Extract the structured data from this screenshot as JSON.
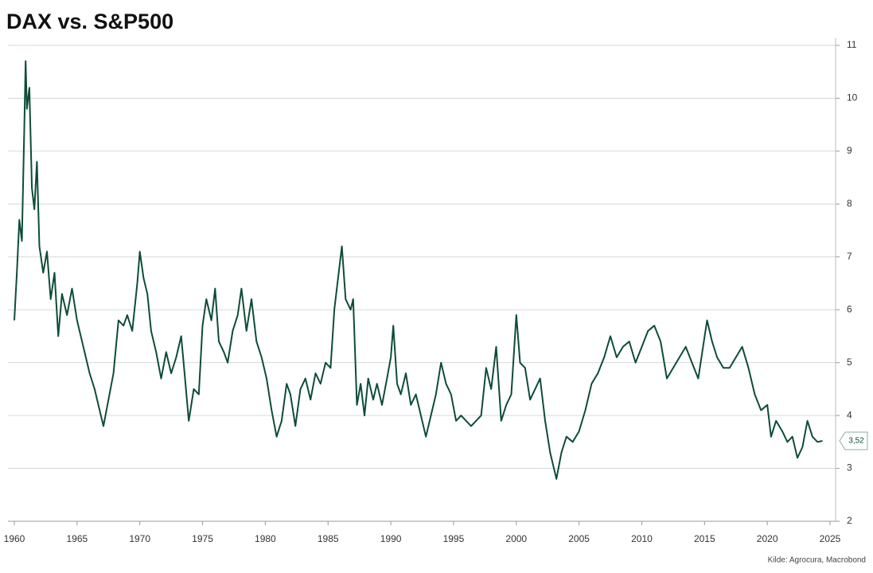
{
  "chart_data": {
    "type": "line",
    "title": "DAX vs. S&P500",
    "source": "Kilde: Agrocura, Macrobond",
    "series": [
      {
        "color": "#0d4d36",
        "x": [
          1960.0,
          1960.2,
          1960.4,
          1960.6,
          1960.8,
          1960.9,
          1961.0,
          1961.2,
          1961.4,
          1961.6,
          1961.8,
          1962.0,
          1962.3,
          1962.6,
          1962.9,
          1963.2,
          1963.5,
          1963.8,
          1964.2,
          1964.6,
          1965.0,
          1965.5,
          1966.0,
          1966.4,
          1966.8,
          1967.1,
          1967.5,
          1967.9,
          1968.3,
          1968.7,
          1969.0,
          1969.4,
          1969.8,
          1970.0,
          1970.3,
          1970.6,
          1970.9,
          1971.3,
          1971.7,
          1972.1,
          1972.5,
          1972.9,
          1973.3,
          1973.6,
          1973.9,
          1974.3,
          1974.7,
          1975.0,
          1975.3,
          1975.7,
          1976.0,
          1976.3,
          1976.7,
          1977.0,
          1977.4,
          1977.8,
          1978.1,
          1978.5,
          1978.9,
          1979.3,
          1979.7,
          1980.1,
          1980.5,
          1980.9,
          1981.3,
          1981.7,
          1982.0,
          1982.4,
          1982.8,
          1983.2,
          1983.6,
          1984.0,
          1984.4,
          1984.8,
          1985.2,
          1985.5,
          1985.9,
          1986.1,
          1986.4,
          1986.8,
          1987.0,
          1987.3,
          1987.6,
          1987.9,
          1988.2,
          1988.6,
          1988.9,
          1989.3,
          1989.7,
          1990.0,
          1990.2,
          1990.5,
          1990.8,
          1991.2,
          1991.6,
          1992.0,
          1992.4,
          1992.8,
          1993.2,
          1993.6,
          1994.0,
          1994.4,
          1994.8,
          1995.2,
          1995.6,
          1996.0,
          1996.4,
          1996.8,
          1997.2,
          1997.6,
          1998.0,
          1998.4,
          1998.8,
          1999.2,
          1999.6,
          2000.0,
          2000.3,
          2000.7,
          2001.1,
          2001.5,
          2001.9,
          2002.3,
          2002.7,
          2003.2,
          2003.6,
          2004.0,
          2004.5,
          2005.0,
          2005.5,
          2006.0,
          2006.5,
          2007.0,
          2007.5,
          2008.0,
          2008.5,
          2009.0,
          2009.5,
          2010.0,
          2010.5,
          2011.0,
          2011.5,
          2012.0,
          2012.5,
          2013.0,
          2013.5,
          2014.0,
          2014.5,
          2015.2,
          2015.6,
          2016.0,
          2016.5,
          2017.0,
          2017.5,
          2018.0,
          2018.5,
          2019.0,
          2019.5,
          2020.0,
          2020.3,
          2020.7,
          2021.2,
          2021.6,
          2022.0,
          2022.4,
          2022.8,
          2023.2,
          2023.6,
          2024.0,
          2024.4
        ],
        "values": [
          5.8,
          6.7,
          7.7,
          7.3,
          9.5,
          10.7,
          9.8,
          10.2,
          8.3,
          7.9,
          8.8,
          7.2,
          6.7,
          7.1,
          6.2,
          6.7,
          5.5,
          6.3,
          5.9,
          6.4,
          5.8,
          5.3,
          4.8,
          4.5,
          4.1,
          3.8,
          4.3,
          4.8,
          5.8,
          5.7,
          5.9,
          5.6,
          6.5,
          7.1,
          6.6,
          6.3,
          5.6,
          5.2,
          4.7,
          5.2,
          4.8,
          5.1,
          5.5,
          4.7,
          3.9,
          4.5,
          4.4,
          5.7,
          6.2,
          5.8,
          6.4,
          5.4,
          5.2,
          5.0,
          5.6,
          5.9,
          6.4,
          5.6,
          6.2,
          5.4,
          5.1,
          4.7,
          4.1,
          3.6,
          3.9,
          4.6,
          4.4,
          3.8,
          4.5,
          4.7,
          4.3,
          4.8,
          4.6,
          5.0,
          4.9,
          6.0,
          6.8,
          7.2,
          6.2,
          6.0,
          6.2,
          4.2,
          4.6,
          4.0,
          4.7,
          4.3,
          4.6,
          4.2,
          4.7,
          5.1,
          5.7,
          4.6,
          4.4,
          4.8,
          4.2,
          4.4,
          4.0,
          3.6,
          4.0,
          4.4,
          5.0,
          4.6,
          4.4,
          3.9,
          4.0,
          3.9,
          3.8,
          3.9,
          4.0,
          4.9,
          4.5,
          5.3,
          3.9,
          4.2,
          4.4,
          5.9,
          5.0,
          4.9,
          4.3,
          4.5,
          4.7,
          3.9,
          3.3,
          2.8,
          3.3,
          3.6,
          3.5,
          3.7,
          4.1,
          4.6,
          4.8,
          5.1,
          5.5,
          5.1,
          5.3,
          5.4,
          5.0,
          5.3,
          5.6,
          5.7,
          5.4,
          4.7,
          4.9,
          5.1,
          5.3,
          5.0,
          4.7,
          5.8,
          5.4,
          5.1,
          4.9,
          4.9,
          5.1,
          5.3,
          4.9,
          4.4,
          4.1,
          4.2,
          3.6,
          3.9,
          3.7,
          3.5,
          3.6,
          3.2,
          3.4,
          3.9,
          3.6,
          3.5,
          3.52
        ]
      }
    ],
    "last_value": {
      "value": 3.52,
      "label": "3,52"
    },
    "xlim": [
      1960,
      2025
    ],
    "xticks": [
      1960,
      1965,
      1970,
      1975,
      1980,
      1985,
      1990,
      1995,
      2000,
      2005,
      2010,
      2015,
      2020,
      2025
    ],
    "ylim": [
      2,
      11
    ],
    "yticks": [
      2,
      3,
      4,
      5,
      6,
      7,
      8,
      9,
      10,
      11
    ],
    "grid": true
  }
}
